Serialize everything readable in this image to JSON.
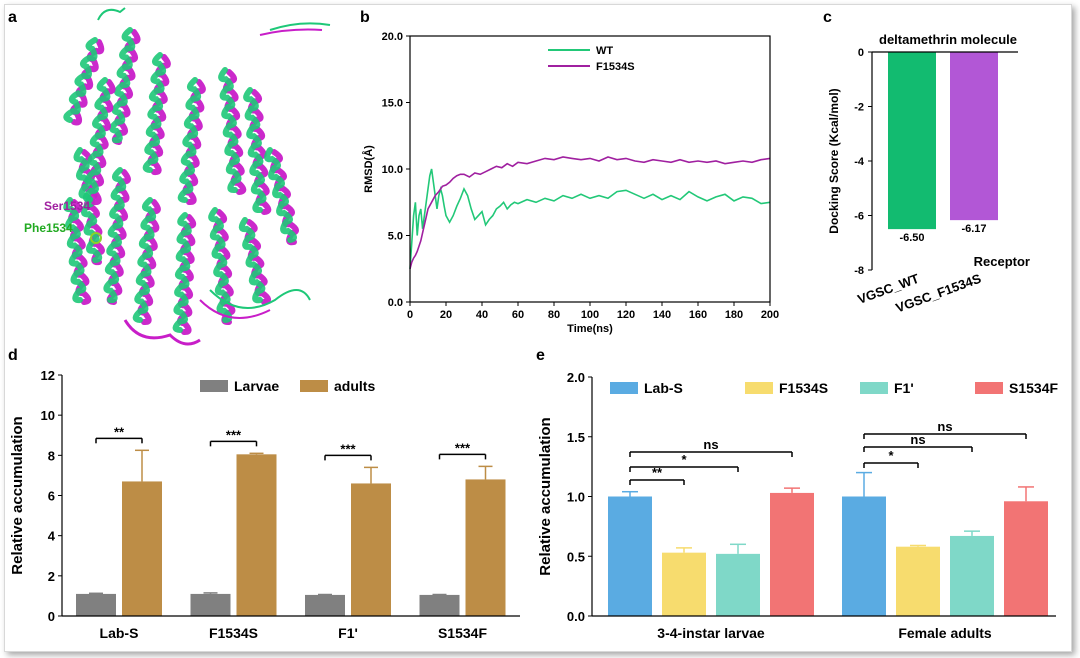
{
  "panel_labels": {
    "a": "a",
    "b": "b",
    "c": "c",
    "d": "d",
    "e": "e"
  },
  "panel_a": {
    "label_ser": "Ser1534",
    "label_phe": "Phe1534",
    "colors": {
      "wt": "#1ec878",
      "mut": "#c81ec8"
    }
  },
  "chart_data": [
    {
      "id": "b",
      "type": "line",
      "xlabel": "Time(ns)",
      "ylabel": "RMSD(Å)",
      "xlim": [
        0,
        200
      ],
      "ylim": [
        0,
        20
      ],
      "xticks": [
        "0",
        "20",
        "40",
        "60",
        "80",
        "100",
        "120",
        "140",
        "160",
        "180",
        "200"
      ],
      "yticks": [
        "0.0",
        "5.0",
        "10.0",
        "15.0",
        "20.0"
      ],
      "legend": "top-center",
      "series": [
        {
          "name": "WT",
          "color": "#22c878",
          "points": [
            [
              0,
              2.5
            ],
            [
              1,
              4.5
            ],
            [
              2,
              6.5
            ],
            [
              3,
              7.5
            ],
            [
              4,
              5
            ],
            [
              5,
              6.5
            ],
            [
              6,
              7
            ],
            [
              7,
              5.5
            ],
            [
              8,
              6.5
            ],
            [
              9,
              7.5
            ],
            [
              10,
              8.5
            ],
            [
              11,
              9.5
            ],
            [
              12,
              10
            ],
            [
              13,
              9
            ],
            [
              14,
              8
            ],
            [
              15,
              7
            ],
            [
              16,
              8
            ],
            [
              17,
              8.5
            ],
            [
              18,
              8
            ],
            [
              19,
              7.2
            ],
            [
              20,
              6.5
            ],
            [
              22,
              6
            ],
            [
              24,
              6.5
            ],
            [
              26,
              7.2
            ],
            [
              28,
              7.8
            ],
            [
              30,
              8.5
            ],
            [
              32,
              8
            ],
            [
              34,
              7
            ],
            [
              36,
              6.2
            ],
            [
              38,
              6.5
            ],
            [
              40,
              6.8
            ],
            [
              42,
              5.8
            ],
            [
              44,
              6.2
            ],
            [
              46,
              6.5
            ],
            [
              48,
              7
            ],
            [
              50,
              7.2
            ],
            [
              52,
              7.5
            ],
            [
              54,
              7
            ],
            [
              56,
              7.3
            ],
            [
              58,
              7.5
            ],
            [
              60,
              7.4
            ],
            [
              65,
              7.7
            ],
            [
              70,
              7.5
            ],
            [
              75,
              7.8
            ],
            [
              80,
              7.6
            ],
            [
              85,
              8
            ],
            [
              90,
              7.8
            ],
            [
              95,
              8.1
            ],
            [
              100,
              7.8
            ],
            [
              105,
              8
            ],
            [
              110,
              7.8
            ],
            [
              115,
              8.3
            ],
            [
              120,
              8.4
            ],
            [
              125,
              8.1
            ],
            [
              130,
              7.8
            ],
            [
              135,
              8.1
            ],
            [
              140,
              7.7
            ],
            [
              145,
              8
            ],
            [
              150,
              7.7
            ],
            [
              155,
              8.3
            ],
            [
              160,
              7.9
            ],
            [
              165,
              7.6
            ],
            [
              170,
              7.9
            ],
            [
              175,
              8.1
            ],
            [
              180,
              7.6
            ],
            [
              185,
              7.9
            ],
            [
              190,
              7.8
            ],
            [
              195,
              7.4
            ],
            [
              200,
              7.5
            ]
          ]
        },
        {
          "name": "F1534S",
          "color": "#a020a0",
          "points": [
            [
              0,
              2.5
            ],
            [
              1,
              3
            ],
            [
              2,
              3.3
            ],
            [
              3,
              3.5
            ],
            [
              4,
              3.8
            ],
            [
              5,
              4.2
            ],
            [
              6,
              4.6
            ],
            [
              7,
              5.2
            ],
            [
              8,
              5.8
            ],
            [
              9,
              6.4
            ],
            [
              10,
              7
            ],
            [
              12,
              7.5
            ],
            [
              14,
              8
            ],
            [
              16,
              8.3
            ],
            [
              18,
              8.7
            ],
            [
              20,
              8.8
            ],
            [
              22,
              9
            ],
            [
              24,
              9.3
            ],
            [
              26,
              9.5
            ],
            [
              28,
              9.6
            ],
            [
              30,
              9.6
            ],
            [
              33,
              9.4
            ],
            [
              36,
              9.7
            ],
            [
              39,
              9.6
            ],
            [
              42,
              9.8
            ],
            [
              45,
              10
            ],
            [
              48,
              10.2
            ],
            [
              51,
              10.1
            ],
            [
              54,
              10.4
            ],
            [
              57,
              10.2
            ],
            [
              60,
              10.5
            ],
            [
              65,
              10.4
            ],
            [
              70,
              10.6
            ],
            [
              75,
              10.8
            ],
            [
              80,
              10.7
            ],
            [
              85,
              10.9
            ],
            [
              90,
              10.8
            ],
            [
              95,
              10.7
            ],
            [
              100,
              10.8
            ],
            [
              105,
              10.6
            ],
            [
              110,
              10.9
            ],
            [
              115,
              10.7
            ],
            [
              120,
              10.8
            ],
            [
              125,
              10.6
            ],
            [
              130,
              10.5
            ],
            [
              135,
              10.7
            ],
            [
              140,
              10.6
            ],
            [
              145,
              10.5
            ],
            [
              150,
              10.7
            ],
            [
              155,
              10.5
            ],
            [
              160,
              10.6
            ],
            [
              165,
              10.5
            ],
            [
              170,
              10.6
            ],
            [
              175,
              10.4
            ],
            [
              180,
              10.5
            ],
            [
              185,
              10.6
            ],
            [
              190,
              10.5
            ],
            [
              195,
              10.7
            ],
            [
              200,
              10.8
            ]
          ]
        }
      ]
    },
    {
      "id": "c",
      "type": "bar",
      "title": "deltamethrin molecule",
      "xlabel": "Receptor",
      "ylabel": "Docking Score (Kcal/mol)",
      "categories": [
        "VGSC_WT",
        "VGSC_F1534S"
      ],
      "values": [
        -6.5,
        -6.17
      ],
      "value_labels": [
        "-6.50",
        "-6.17"
      ],
      "colors": [
        "#12bb70",
        "#b257d6"
      ],
      "ylim": [
        -8,
        0
      ],
      "yticks": [
        "0",
        "-2",
        "-4",
        "-6",
        "-8"
      ]
    },
    {
      "id": "d",
      "type": "bar",
      "ylabel": "Relative accumulation",
      "categories": [
        "Lab-S",
        "F1534S",
        "F1'",
        "S1534F"
      ],
      "ylim": [
        0,
        12
      ],
      "yticks": [
        "0",
        "2",
        "4",
        "6",
        "8",
        "10",
        "12"
      ],
      "legend": "top-center",
      "series": [
        {
          "name": "Larvae",
          "color": "#808080",
          "values": [
            1.1,
            1.1,
            1.05,
            1.05
          ],
          "errors": [
            0.03,
            0.05,
            0.02,
            0.02
          ]
        },
        {
          "name": "adults",
          "color": "#bd8d46",
          "values": [
            6.7,
            8.05,
            6.6,
            6.8
          ],
          "errors": [
            1.55,
            0.05,
            0.8,
            0.65
          ]
        }
      ],
      "significance": [
        "**",
        "***",
        "***",
        "***"
      ]
    },
    {
      "id": "e",
      "type": "bar",
      "ylabel": "Relative accumulation",
      "categories": [
        "3-4-instar larvae",
        "Female adults"
      ],
      "ylim": [
        0,
        2.0
      ],
      "yticks": [
        "0.0",
        "0.5",
        "1.0",
        "1.5",
        "2.0"
      ],
      "legend": "top-center",
      "series": [
        {
          "name": "Lab-S",
          "color": "#5aabe2",
          "values": [
            1.0,
            1.0
          ],
          "errors": [
            0.04,
            0.2
          ]
        },
        {
          "name": "F1534S",
          "color": "#f7dc6e",
          "values": [
            0.53,
            0.58
          ],
          "errors": [
            0.04,
            0.01
          ]
        },
        {
          "name": "F1'",
          "color": "#7fd8c8",
          "values": [
            0.52,
            0.67
          ],
          "errors": [
            0.08,
            0.04
          ]
        },
        {
          "name": "S1534F",
          "color": "#f27474",
          "values": [
            1.03,
            0.96
          ],
          "errors": [
            0.04,
            0.12
          ]
        }
      ],
      "significance": [
        {
          "group": 0,
          "to": 1,
          "label": "**"
        },
        {
          "group": 0,
          "to": 2,
          "label": "*"
        },
        {
          "group": 0,
          "to": 3,
          "label": "ns"
        },
        {
          "group": 1,
          "to": 1,
          "label": "*"
        },
        {
          "group": 1,
          "to": 2,
          "label": "ns"
        },
        {
          "group": 1,
          "to": 3,
          "label": "ns"
        }
      ]
    }
  ]
}
